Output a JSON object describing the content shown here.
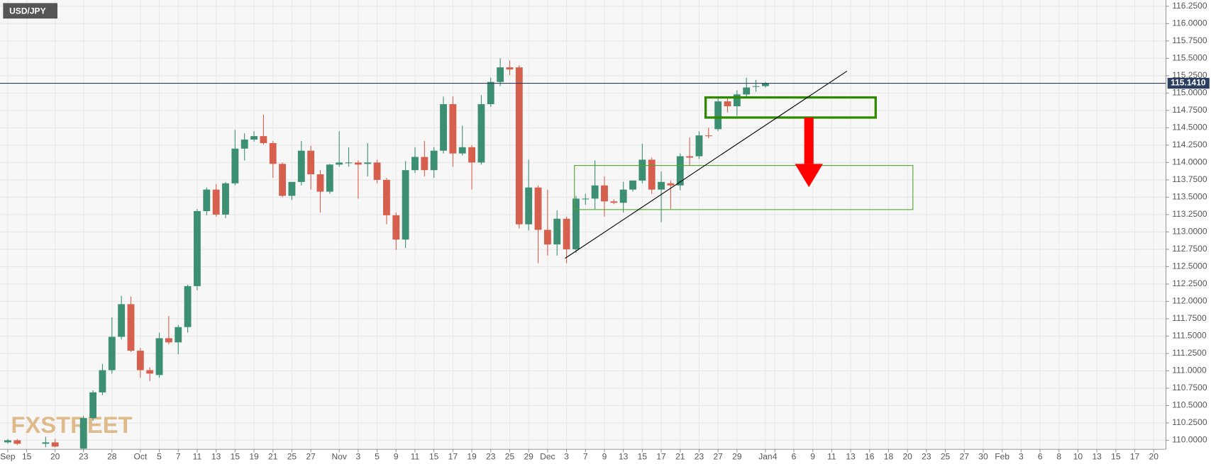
{
  "chart_data": {
    "type": "candlestick",
    "symbol": "USD/JPY",
    "watermark": "FXSTREET",
    "categories": [
      "Sep",
      null,
      "15",
      null,
      null,
      "20",
      null,
      null,
      "23",
      null,
      null,
      "28",
      null,
      null,
      "Oct",
      null,
      "5",
      null,
      "7",
      null,
      "11",
      null,
      "13",
      null,
      "15",
      null,
      "19",
      null,
      "21",
      null,
      "25",
      null,
      "27",
      null,
      null,
      "Nov",
      null,
      "3",
      null,
      "5",
      null,
      "9",
      null,
      "11",
      null,
      "15",
      null,
      "17",
      null,
      "19",
      null,
      "23",
      null,
      "25",
      null,
      "29",
      null,
      "Dec",
      null,
      "3",
      null,
      "7",
      null,
      "9",
      null,
      "13",
      null,
      "15",
      null,
      "17",
      null,
      "21",
      null,
      "23",
      null,
      "27",
      null,
      "29",
      null,
      null,
      "Jan",
      "4",
      null,
      "6",
      null,
      "9",
      null,
      "11",
      null,
      "13",
      null,
      "16",
      null,
      "18",
      null,
      "20",
      null,
      "23",
      null,
      "25",
      null,
      "27",
      null,
      "30",
      null,
      "Feb",
      null,
      "3",
      null,
      "6",
      null,
      "8",
      null,
      "10",
      null,
      "13",
      null,
      "15",
      null,
      "17",
      null,
      "20"
    ],
    "open": [
      109.97,
      110.0,
      null,
      null,
      109.95,
      109.97,
      null,
      null,
      109.88,
      110.32,
      110.69,
      111.01,
      111.49,
      111.96,
      111.29,
      111.01,
      110.94,
      111.47,
      111.41,
      111.63,
      112.22,
      113.3,
      113.61,
      113.25,
      113.7,
      114.2,
      114.33,
      114.38,
      114.28,
      113.98,
      113.52,
      113.72,
      114.17,
      113.83,
      113.58,
      113.97,
      114.0,
      114.0,
      113.98,
      114.0,
      113.75,
      113.24,
      112.89,
      113.89,
      114.08,
      113.89,
      114.17,
      114.84,
      114.13,
      114.22,
      114.0,
      114.84,
      115.16,
      115.37,
      115.37,
      113.11,
      113.64,
      113.03,
      112.82,
      113.19,
      112.75,
      113.47,
      113.48,
      113.67,
      113.44,
      113.42,
      113.61,
      113.74,
      114.04,
      113.61,
      113.7,
      113.67,
      114.09,
      114.09,
      114.39,
      114.48,
      114.88,
      114.81,
      114.98,
      115.09,
      115.1,
      null,
      null,
      null,
      null,
      null,
      null,
      null,
      null,
      null,
      null,
      null,
      null,
      null,
      null,
      null,
      null,
      null,
      null,
      null,
      null,
      null,
      null,
      null,
      null,
      null,
      null,
      null,
      null,
      null,
      null,
      null,
      null,
      null,
      null,
      null,
      null,
      null,
      null,
      null,
      null,
      null
    ],
    "high": [
      110.02,
      110.02,
      null,
      null,
      110.05,
      110.02,
      null,
      null,
      110.35,
      110.72,
      111.1,
      111.77,
      112.08,
      112.07,
      111.33,
      111.05,
      111.55,
      111.79,
      111.66,
      112.24,
      113.33,
      113.64,
      113.69,
      113.72,
      114.47,
      114.42,
      114.45,
      114.69,
      114.31,
      114.0,
      113.72,
      114.31,
      114.24,
      113.89,
      113.98,
      114.45,
      114.22,
      114.03,
      114.28,
      114.04,
      113.78,
      113.28,
      114.02,
      114.22,
      114.31,
      114.22,
      114.95,
      114.95,
      114.53,
      114.25,
      114.97,
      115.22,
      115.5,
      115.47,
      115.4,
      114.04,
      113.67,
      113.61,
      113.31,
      113.22,
      113.52,
      113.55,
      114.03,
      113.8,
      113.47,
      113.72,
      113.74,
      114.27,
      114.07,
      113.87,
      113.74,
      114.13,
      114.36,
      114.45,
      114.5,
      114.92,
      114.95,
      115.04,
      115.22,
      115.19,
      115.16,
      null,
      null,
      null,
      null,
      null,
      null,
      null,
      null,
      null,
      null,
      null,
      null,
      null,
      null,
      null,
      null,
      null,
      null,
      null,
      null,
      null,
      null,
      null,
      null,
      null,
      null,
      null,
      null,
      null,
      null,
      null,
      null,
      null,
      null,
      null,
      null,
      null,
      null,
      null,
      null,
      null
    ],
    "low": [
      109.95,
      109.93,
      null,
      null,
      109.9,
      109.9,
      null,
      null,
      109.85,
      110.28,
      110.65,
      110.96,
      111.45,
      111.27,
      110.9,
      110.85,
      110.9,
      111.38,
      111.24,
      111.55,
      112.16,
      113.24,
      113.22,
      113.2,
      113.67,
      114.03,
      114.3,
      114.26,
      113.78,
      113.5,
      113.46,
      113.67,
      113.61,
      113.28,
      113.55,
      113.94,
      113.94,
      113.48,
      113.8,
      113.7,
      113.11,
      112.74,
      112.77,
      113.85,
      113.8,
      113.78,
      114.13,
      113.94,
      114.1,
      113.61,
      113.97,
      114.8,
      115.1,
      115.26,
      113.05,
      113.02,
      112.55,
      112.66,
      112.66,
      112.55,
      112.7,
      113.39,
      113.33,
      113.22,
      113.4,
      113.28,
      113.58,
      113.7,
      113.55,
      113.14,
      113.33,
      113.6,
      113.95,
      114.05,
      114.35,
      114.45,
      114.72,
      114.67,
      114.95,
      115.02,
      115.08,
      null,
      null,
      null,
      null,
      null,
      null,
      null,
      null,
      null,
      null,
      null,
      null,
      null,
      null,
      null,
      null,
      null,
      null,
      null,
      null,
      null,
      null,
      null,
      null,
      null,
      null,
      null,
      null,
      null,
      null,
      null,
      null,
      null,
      null,
      null,
      null,
      null,
      null,
      null,
      null,
      null
    ],
    "close": [
      110.0,
      109.95,
      null,
      null,
      109.97,
      109.91,
      null,
      null,
      110.32,
      110.69,
      111.01,
      111.49,
      111.96,
      111.29,
      111.01,
      110.96,
      111.47,
      111.41,
      111.63,
      112.22,
      113.3,
      113.61,
      113.25,
      113.7,
      114.2,
      114.33,
      114.38,
      114.28,
      113.98,
      113.52,
      113.72,
      114.17,
      113.83,
      113.58,
      113.97,
      114.0,
      114.0,
      113.97,
      114.0,
      113.75,
      113.24,
      112.89,
      113.89,
      114.08,
      113.89,
      114.17,
      114.84,
      114.13,
      114.22,
      114.0,
      114.84,
      115.16,
      115.37,
      115.34,
      113.11,
      113.64,
      113.03,
      112.82,
      113.19,
      112.75,
      113.48,
      113.48,
      113.67,
      113.44,
      113.42,
      113.61,
      113.74,
      114.04,
      113.61,
      113.72,
      113.67,
      114.09,
      114.07,
      114.39,
      114.38,
      114.88,
      114.81,
      114.98,
      115.08,
      115.1,
      115.14,
      null,
      null,
      null,
      null,
      null,
      null,
      null,
      null,
      null,
      null,
      null,
      null,
      null,
      null,
      null,
      null,
      null,
      null,
      null,
      null,
      null,
      null,
      null,
      null,
      null,
      null,
      null,
      null,
      null,
      null,
      null,
      null,
      null,
      null,
      null,
      null,
      null,
      null,
      null,
      null,
      null
    ],
    "up_color": "#3c8f72",
    "down_color": "#d6604d",
    "ylim": [
      109.87,
      116.34
    ],
    "yticks": [
      {
        "value": 110,
        "label": "110.0000"
      },
      {
        "value": 110.25,
        "label": "110.2500"
      },
      {
        "value": 110.5,
        "label": "110.5000"
      },
      {
        "value": 110.75,
        "label": "110.7500"
      },
      {
        "value": 111,
        "label": "111.0000"
      },
      {
        "value": 111.25,
        "label": "111.2500"
      },
      {
        "value": 111.5,
        "label": "111.5000"
      },
      {
        "value": 111.75,
        "label": "111.7500"
      },
      {
        "value": 112,
        "label": "112.0000"
      },
      {
        "value": 112.25,
        "label": "112.2500"
      },
      {
        "value": 112.5,
        "label": "112.5000"
      },
      {
        "value": 112.75,
        "label": "112.7500"
      },
      {
        "value": 113,
        "label": "113.0000"
      },
      {
        "value": 113.25,
        "label": "113.2500"
      },
      {
        "value": 113.5,
        "label": "113.5000"
      },
      {
        "value": 113.75,
        "label": "113.7500"
      },
      {
        "value": 114,
        "label": "114.0000"
      },
      {
        "value": 114.25,
        "label": "114.2500"
      },
      {
        "value": 114.5,
        "label": "114.5000"
      },
      {
        "value": 114.75,
        "label": "114.7500"
      },
      {
        "value": 115,
        "label": "115.0000"
      },
      {
        "value": 115.25,
        "label": "115.2500"
      },
      {
        "value": 115.5,
        "label": "115.5000"
      },
      {
        "value": 115.75,
        "label": "115.7500"
      },
      {
        "value": 116,
        "label": "116.0000"
      },
      {
        "value": 116.25,
        "label": "116.2500"
      }
    ],
    "grid": true,
    "last_price": {
      "value": 115.141,
      "label": "115.1410"
    },
    "last_price_color": "#2c3e60"
  }
}
